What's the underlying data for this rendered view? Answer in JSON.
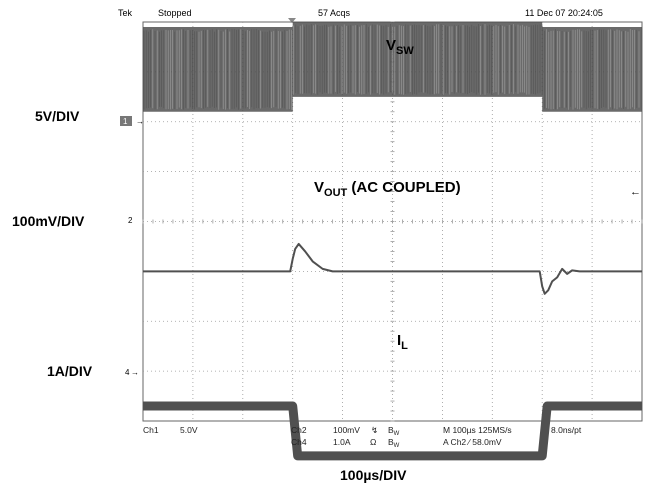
{
  "header": {
    "brand": "Tek",
    "status": "Stopped",
    "acqs": "57 Acqs",
    "datetime": "11 Dec 07 20:24:05"
  },
  "scale_labels": {
    "ch1": "5V/DIV",
    "ch2": "100mV/DIV",
    "ch4": "1A/DIV",
    "time": "100µs/DIV"
  },
  "channel_markers": {
    "ch1": "1",
    "ch2": "2",
    "ch4": "4"
  },
  "signal_labels": {
    "vsw_main": "V",
    "vsw_sub": "SW",
    "vout_main": "V",
    "vout_sub": "OUT",
    "vout_suffix": " (AC COUPLED)",
    "il_main": "I",
    "il_sub": "L"
  },
  "footer": {
    "ch1": "Ch1",
    "ch1_scale": "5.0V",
    "ch2": "Ch2",
    "ch2_scale": "100mV",
    "ch4": "Ch4",
    "ch4_scale": "1.0A",
    "bw1": "B",
    "bw1_sub": "W",
    "bw2": "B",
    "bw2_sub": "W",
    "timebase": "M 100µs 125MS/s",
    "trigger": "A  Ch2  ∕  58.0mV",
    "resolution": "8.0ns/pt"
  },
  "colors": {
    "trace": "#505050",
    "grid": "#9a9a9a",
    "frame": "#666666"
  },
  "chart_data": {
    "type": "line",
    "xlabel": "100µs/DIV",
    "x_divisions": 10,
    "y_divisions": 8,
    "grid": true,
    "series": [
      {
        "name": "VSW",
        "unit": "V",
        "volts_per_div": 5,
        "note": "switching waveform, envelope shown",
        "band_low": [
          [
            0,
            0.7
          ],
          [
            3.0,
            0.7
          ],
          [
            3.0,
            1.0
          ],
          [
            8.0,
            1.0
          ],
          [
            8.0,
            0.7
          ],
          [
            10,
            0.7
          ]
        ],
        "band_high": [
          [
            0,
            2.4
          ],
          [
            3.0,
            2.4
          ],
          [
            3.0,
            2.5
          ],
          [
            8.0,
            2.5
          ],
          [
            8.0,
            2.4
          ],
          [
            10,
            2.4
          ]
        ]
      },
      {
        "name": "VOUT (AC COUPLED)",
        "unit": "mV",
        "volts_per_div": 0.1,
        "points": [
          [
            0,
            0
          ],
          [
            2.95,
            0
          ],
          [
            3.0,
            0.25
          ],
          [
            3.05,
            0.45
          ],
          [
            3.12,
            0.55
          ],
          [
            3.25,
            0.4
          ],
          [
            3.4,
            0.2
          ],
          [
            3.6,
            0.05
          ],
          [
            3.8,
            0
          ],
          [
            7.95,
            0
          ],
          [
            8.0,
            -0.3
          ],
          [
            8.05,
            -0.45
          ],
          [
            8.12,
            -0.38
          ],
          [
            8.2,
            -0.2
          ],
          [
            8.3,
            -0.12
          ],
          [
            8.4,
            0.05
          ],
          [
            8.5,
            -0.05
          ],
          [
            8.6,
            0.02
          ],
          [
            8.75,
            0
          ],
          [
            10,
            0
          ]
        ]
      },
      {
        "name": "IL",
        "unit": "A",
        "volts_per_div": 1,
        "points": [
          [
            0,
            1.0
          ],
          [
            3.0,
            1.0
          ],
          [
            3.1,
            0
          ],
          [
            8.0,
            0
          ],
          [
            8.1,
            1.0
          ],
          [
            10,
            1.0
          ]
        ]
      }
    ]
  }
}
